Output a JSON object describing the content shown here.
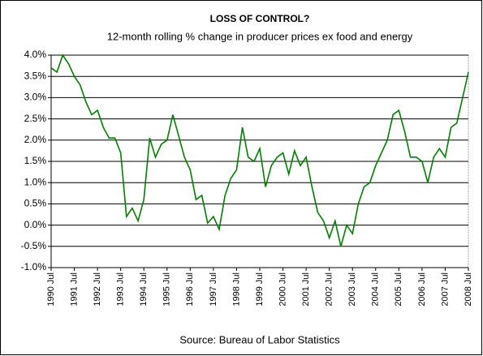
{
  "chart_data": {
    "type": "line",
    "title": "LOSS OF CONTROL?",
    "subtitle": "12-month rolling % change in producer prices ex food and energy",
    "source": "Source: Bureau of Labor Statistics",
    "x": [
      1990.5,
      1990.75,
      1991,
      1991.25,
      1991.5,
      1991.75,
      1992,
      1992.25,
      1992.5,
      1992.75,
      1993,
      1993.25,
      1993.5,
      1993.75,
      1994,
      1994.25,
      1994.5,
      1994.75,
      1995,
      1995.25,
      1995.5,
      1995.75,
      1996,
      1996.25,
      1996.5,
      1996.75,
      1997,
      1997.25,
      1997.5,
      1997.75,
      1998,
      1998.25,
      1998.5,
      1998.75,
      1999,
      1999.25,
      1999.5,
      1999.75,
      2000,
      2000.25,
      2000.5,
      2000.75,
      2001,
      2001.25,
      2001.5,
      2001.75,
      2002,
      2002.25,
      2002.5,
      2002.75,
      2003,
      2003.25,
      2003.5,
      2003.75,
      2004,
      2004.25,
      2004.5,
      2004.75,
      2005,
      2005.25,
      2005.5,
      2005.75,
      2006,
      2006.25,
      2006.5,
      2006.75,
      2007,
      2007.25,
      2007.5,
      2007.75,
      2008,
      2008.25,
      2008.5
    ],
    "series": [
      {
        "name": "PPI ex food and energy",
        "color": "#008000",
        "values": [
          3.7,
          3.6,
          4.0,
          3.8,
          3.5,
          3.3,
          2.9,
          2.6,
          2.7,
          2.3,
          2.05,
          2.05,
          1.7,
          0.2,
          0.4,
          0.1,
          0.6,
          2.05,
          1.6,
          1.9,
          2.0,
          2.6,
          2.1,
          1.6,
          1.3,
          0.6,
          0.7,
          0.05,
          0.2,
          -0.1,
          0.7,
          1.1,
          1.3,
          2.3,
          1.6,
          1.5,
          1.8,
          0.9,
          1.4,
          1.6,
          1.7,
          1.2,
          1.75,
          1.4,
          1.6,
          0.9,
          0.3,
          0.1,
          -0.3,
          0.1,
          -0.5,
          0.0,
          -0.2,
          0.5,
          0.9,
          1.0,
          1.4,
          1.7,
          2.0,
          2.6,
          2.7,
          2.2,
          1.6,
          1.6,
          1.5,
          1.0,
          1.6,
          1.8,
          1.6,
          2.3,
          2.4,
          3.0,
          3.6
        ]
      }
    ],
    "xlim": [
      1990.5,
      2008.5
    ],
    "xticks": [
      {
        "value": 1990.5,
        "label": "1990 Jul"
      },
      {
        "value": 1991.5,
        "label": "1991 Jul"
      },
      {
        "value": 1992.5,
        "label": "1992 Jul"
      },
      {
        "value": 1993.5,
        "label": "1993 Jul"
      },
      {
        "value": 1994.5,
        "label": "1994 Jul"
      },
      {
        "value": 1995.5,
        "label": "1995 Jul"
      },
      {
        "value": 1996.5,
        "label": "1996 Jul"
      },
      {
        "value": 1997.5,
        "label": "1997 Jul"
      },
      {
        "value": 1998.5,
        "label": "1998 Jul"
      },
      {
        "value": 1999.5,
        "label": "1999 Jul"
      },
      {
        "value": 2000.5,
        "label": "2000 Jul"
      },
      {
        "value": 2001.5,
        "label": "2001 Jul"
      },
      {
        "value": 2002.5,
        "label": "2002 Jul"
      },
      {
        "value": 2003.5,
        "label": "2003 Jul"
      },
      {
        "value": 2004.5,
        "label": "2004 Jul"
      },
      {
        "value": 2005.5,
        "label": "2005 Jul"
      },
      {
        "value": 2006.5,
        "label": "2006 Jul"
      },
      {
        "value": 2007.5,
        "label": "2007 Jul"
      },
      {
        "value": 2008.5,
        "label": "2008 Jul"
      }
    ],
    "ylim": [
      -1,
      4
    ],
    "yticks": [
      {
        "value": -1,
        "label": "-1.0%"
      },
      {
        "value": -0.5,
        "label": "-0.5%"
      },
      {
        "value": 0,
        "label": "0.0%"
      },
      {
        "value": 0.5,
        "label": "0.5%"
      },
      {
        "value": 1,
        "label": "1.0%"
      },
      {
        "value": 1.5,
        "label": "1.5%"
      },
      {
        "value": 2,
        "label": "2.0%"
      },
      {
        "value": 2.5,
        "label": "2.5%"
      },
      {
        "value": 3,
        "label": "3.0%"
      },
      {
        "value": 3.5,
        "label": "3.5%"
      },
      {
        "value": 4,
        "label": "4.0%"
      }
    ],
    "grid": true
  }
}
